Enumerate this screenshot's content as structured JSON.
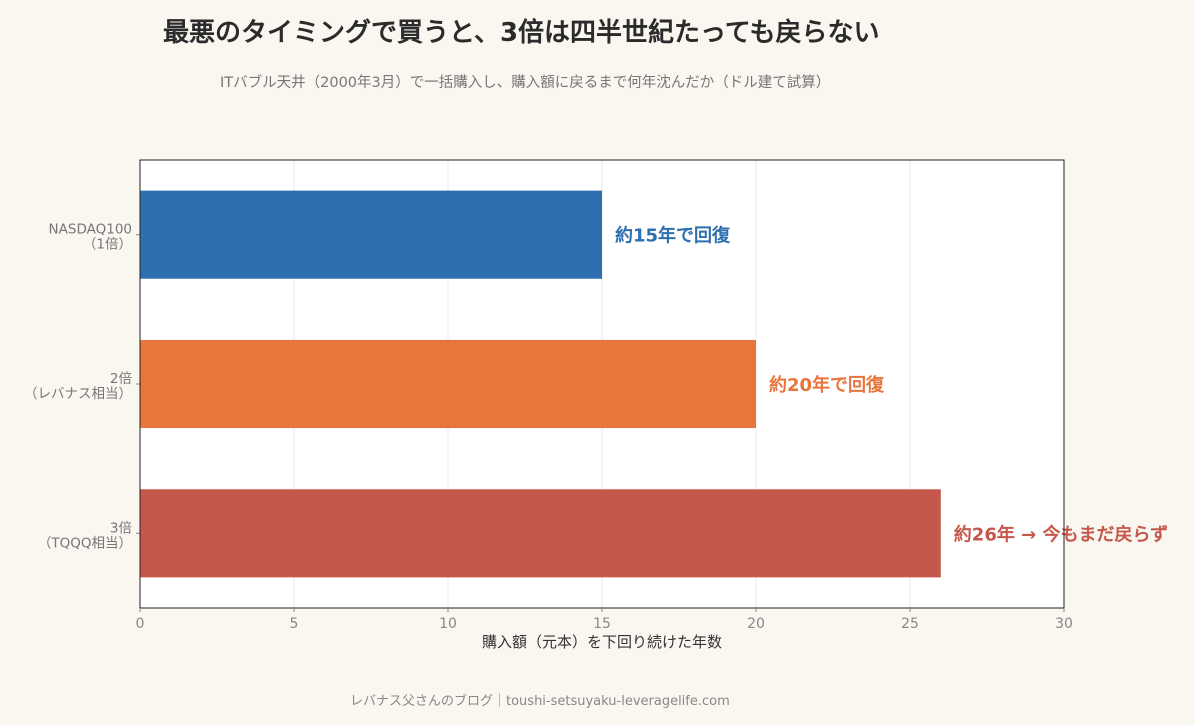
{
  "title": "最悪のタイミングで買うと、3倍は四半世紀たっても戻らない",
  "subtitle": "ITバブル天井（2000年3月）で一括購入し、購入額に戻るまで何年沈んだか（ドル建て試算）",
  "footer": "レバナス父さんのブログ｜toushi-setsuyaku-leveragelife.com",
  "chart_data": {
    "type": "bar",
    "orientation": "horizontal",
    "categories": [
      [
        "NASDAQ100",
        "（1倍）"
      ],
      [
        "2倍",
        "（レバナス相当）"
      ],
      [
        "3倍",
        "（TQQQ相当）"
      ]
    ],
    "values": [
      15,
      20,
      26
    ],
    "bar_labels": [
      "約15年で回復",
      "約20年で回復",
      "約26年 → 今もまだ戻らず"
    ],
    "colors": [
      "#2e6faf",
      "#e8753b",
      "#c5584b"
    ],
    "xlabel": "購入額（元本）を下回り続けた年数",
    "xlim": [
      0,
      30
    ],
    "xticks": [
      0,
      5,
      10,
      15,
      20,
      25,
      30
    ],
    "grid": "vertical"
  }
}
